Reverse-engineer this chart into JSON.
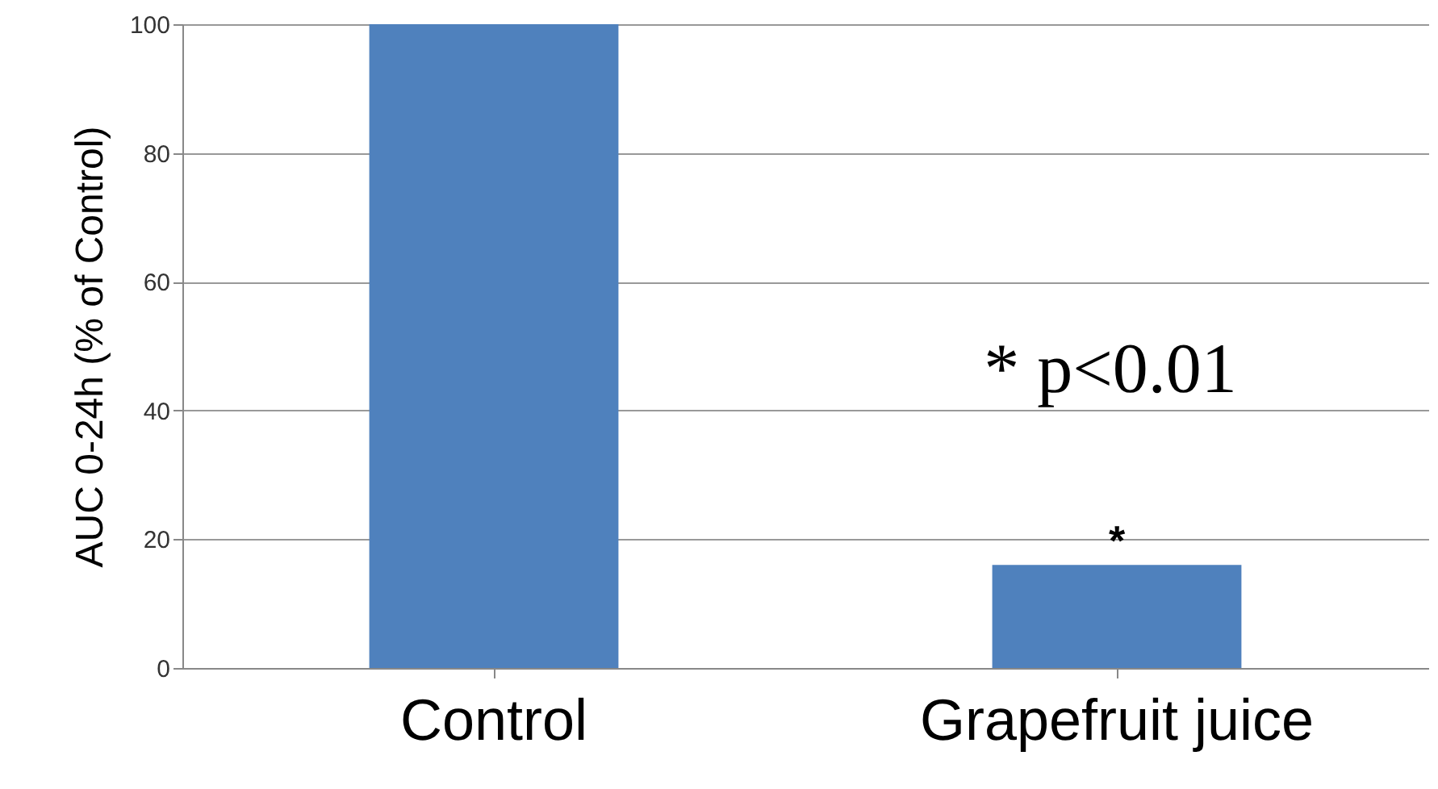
{
  "chart_data": {
    "type": "bar",
    "ylabel": "AUC 0-24h (% of Control)",
    "categories": [
      "Control",
      "Grapefruit juice"
    ],
    "values": [
      100,
      16
    ],
    "color": "#4f81bd",
    "ylim": [
      0,
      100
    ],
    "yticks": [
      0,
      20,
      40,
      60,
      80,
      100
    ],
    "grid": "y",
    "annotations": [
      "* p<0.01",
      {
        "text": "*",
        "x": "Grapefruit juice",
        "y": 16
      }
    ]
  }
}
